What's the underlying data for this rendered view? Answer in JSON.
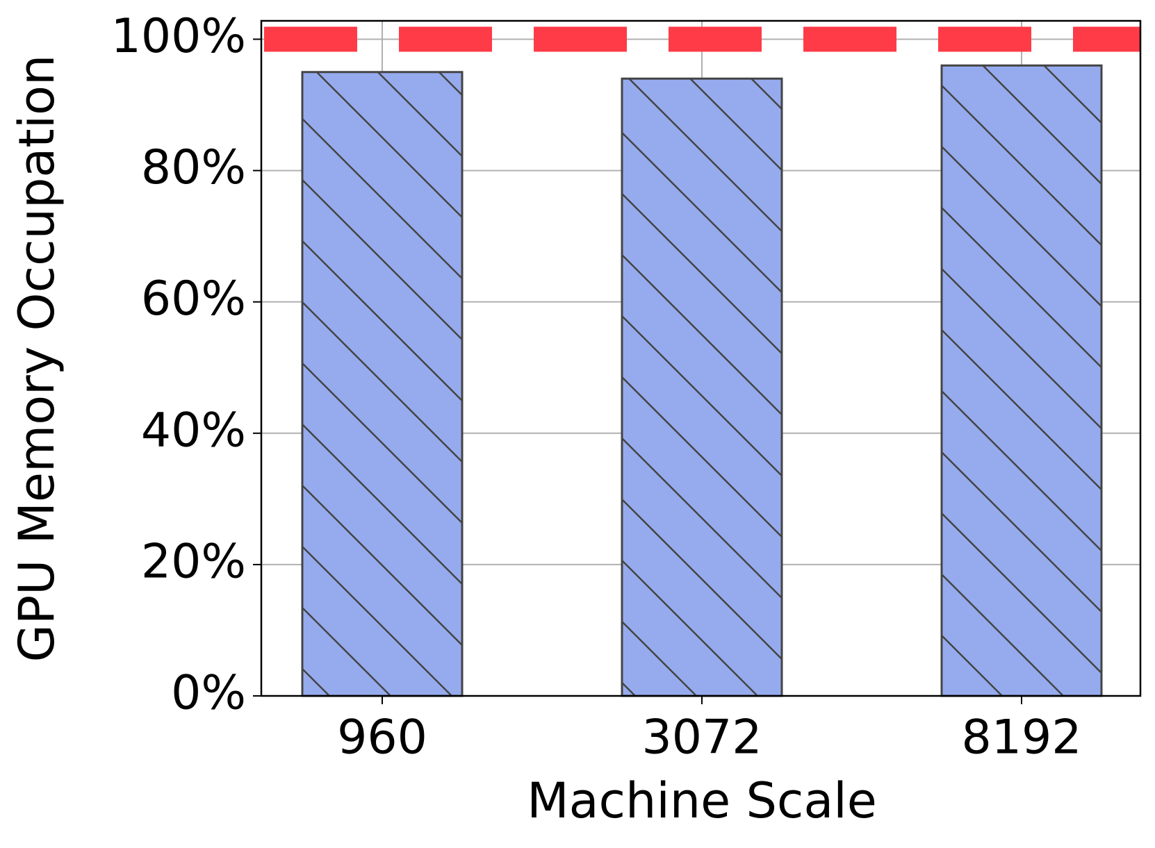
{
  "chart_data": {
    "type": "bar",
    "x_label": "Machine Scale",
    "y_label": "GPU Memory Occupation",
    "categories": [
      "960",
      "3072",
      "8192"
    ],
    "values": [
      95,
      94,
      96
    ],
    "color": "#96abee",
    "edge_color": "#444444",
    "hatch": "\\",
    "reference_line": {
      "value": 100,
      "color": "#ff3b47",
      "style": "dashed"
    },
    "ylim": [
      0,
      102.8
    ],
    "yticks": [
      {
        "value": 0,
        "label": "0%"
      },
      {
        "value": 20,
        "label": "20%"
      },
      {
        "value": 40,
        "label": "40%"
      },
      {
        "value": 60,
        "label": "60%"
      },
      {
        "value": 80,
        "label": "80%"
      },
      {
        "value": 100,
        "label": "100%"
      }
    ],
    "grid": true
  }
}
